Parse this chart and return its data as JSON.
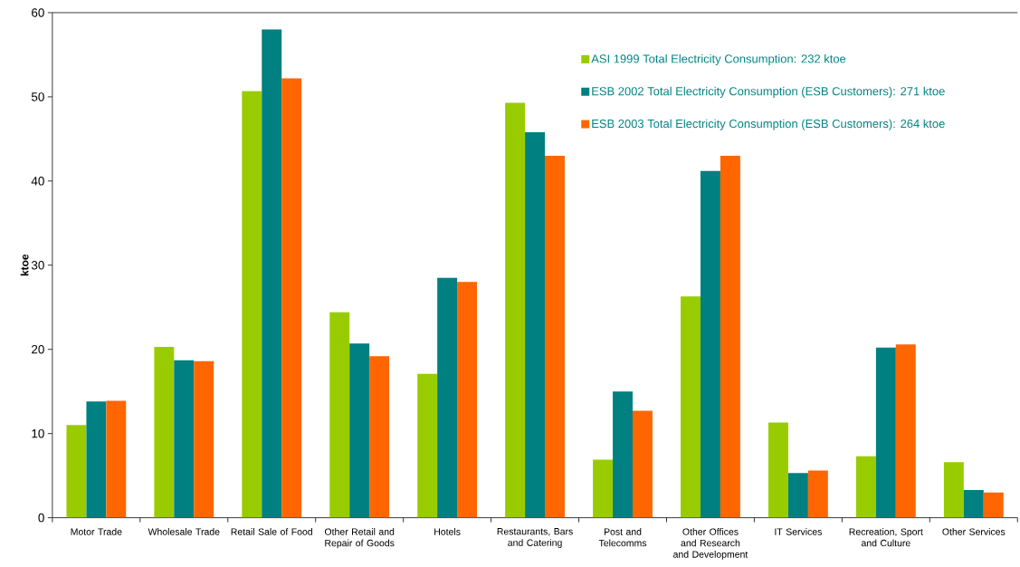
{
  "chart_data": {
    "type": "bar",
    "ylabel": "ktoe",
    "categories": [
      "Motor Trade",
      "Wholesale Trade",
      "Retail Sale of Food",
      "Other Retail and Repair of Goods",
      "Hotels",
      "Restaurants, Bars and Catering",
      "Post and Telecomms",
      "Other Offices and Research and Development",
      "IT Services",
      "Recreation, Sport and Culture",
      "Other Services"
    ],
    "series": [
      {
        "name": "ASI 1999 Total Electricity Consumption: 232 ktoe",
        "color": "#99cc00",
        "values": [
          11.0,
          20.3,
          50.7,
          24.4,
          17.1,
          49.3,
          6.9,
          26.3,
          11.3,
          7.3,
          6.6
        ]
      },
      {
        "name": "ESB 2002 Total Electricity Consumption (ESB Customers): 271 ktoe",
        "color": "#008080",
        "values": [
          13.8,
          18.7,
          58.0,
          20.7,
          28.5,
          45.8,
          15.0,
          41.2,
          5.3,
          20.2,
          3.3
        ]
      },
      {
        "name": "ESB 2003 Total Electricity Consumption (ESB Customers): 264 ktoe",
        "color": "#ff6600",
        "values": [
          13.9,
          18.6,
          52.2,
          19.2,
          28.0,
          43.0,
          12.7,
          43.0,
          5.6,
          20.6,
          3.0
        ]
      }
    ],
    "ylim": [
      0,
      60
    ],
    "yticks": [
      0,
      10,
      20,
      30,
      40,
      50,
      60
    ],
    "legend": "top right",
    "grid": false
  }
}
